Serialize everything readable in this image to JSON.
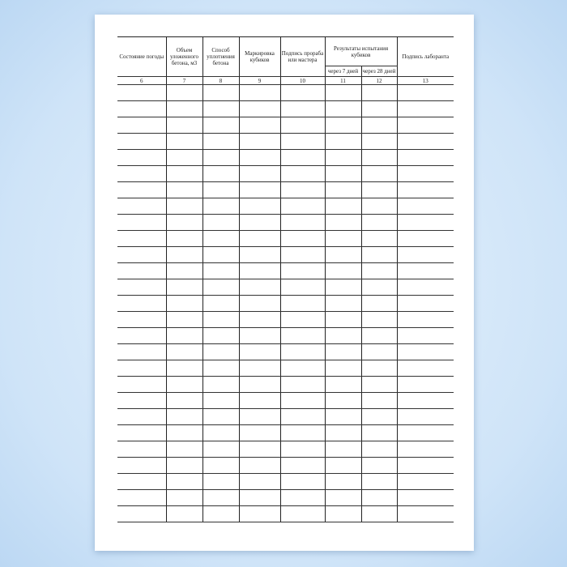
{
  "headers": {
    "weather": "Состояние погоды",
    "volume": "Объем уложенного бетона, м3",
    "compaction": "Способ уплотнения бетона",
    "marking": "Маркировка кубиков",
    "foreman_sig": "Подпись прораба или мастера",
    "results": "Результаты испытания кубиков",
    "after7": "через 7 дней",
    "after28": "через 28 дней",
    "lab_sig": "Подпись лаборанта"
  },
  "column_numbers": [
    "6",
    "7",
    "8",
    "9",
    "10",
    "11",
    "12",
    "13"
  ],
  "empty_rows": 27
}
